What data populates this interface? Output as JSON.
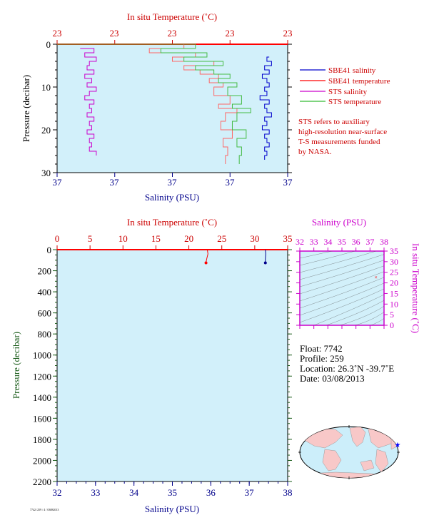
{
  "chart_data": [
    {
      "type": "line",
      "title": "",
      "top_axis": {
        "label": "In situ Temperature (˚C)",
        "tick_labels": [
          "23",
          "23",
          "23",
          "23",
          "23"
        ]
      },
      "bottom_axis": {
        "label": "Salinity (PSU)",
        "tick_labels": [
          "37",
          "37",
          "37",
          "37",
          "37"
        ]
      },
      "y_axis": {
        "label": "Pressure (decibar)",
        "ticks": [
          0,
          10,
          20,
          30
        ],
        "ylim": [
          30,
          0
        ],
        "reversed": true
      },
      "legend": {
        "placement": "right",
        "entries": [
          {
            "name": "SBE41 salinity",
            "color": "#0000cc"
          },
          {
            "name": "SBE41 temperature",
            "color": "#ff0000"
          },
          {
            "name": "STS salinity",
            "color": "#cc00cc"
          },
          {
            "name": "STS temperature",
            "color": "#33bb33"
          }
        ]
      },
      "note": [
        "STS refers to auxiliary",
        "high-resolution near-surface",
        "T-S measurements funded",
        "by NASA."
      ],
      "series": [
        {
          "name": "SBE41 salinity",
          "x_frac": [
            0.92,
            0.91,
            0.93,
            0.9,
            0.92,
            0.89,
            0.91,
            0.92,
            0.9,
            0.91,
            0.88,
            0.92,
            0.9,
            0.91,
            0.93,
            0.9,
            0.91,
            0.89,
            0.92,
            0.9,
            0.91,
            0.92,
            0.9,
            0.91,
            0.9
          ],
          "pressure": [
            3,
            4,
            5,
            6,
            7,
            8,
            9,
            10,
            11,
            12,
            13,
            14,
            15,
            16,
            17,
            18,
            19,
            20,
            21,
            22,
            23,
            24,
            25,
            26,
            27
          ]
        },
        {
          "name": "SBE41 temperature",
          "x_frac": [
            0.0,
            0.55,
            0.4,
            0.6,
            0.5,
            0.68,
            0.55,
            0.62,
            0.7,
            0.66,
            0.72,
            0.68,
            0.75,
            0.7,
            0.78,
            0.73,
            0.71,
            0.76,
            0.72,
            0.74,
            0.73
          ],
          "pressure": [
            0,
            1,
            2,
            3,
            4,
            5,
            6,
            7,
            8,
            9,
            10,
            12,
            14,
            15,
            16,
            18,
            20,
            22,
            24,
            26,
            28
          ]
        },
        {
          "name": "STS salinity",
          "x_frac": [
            0.1,
            0.16,
            0.12,
            0.17,
            0.14,
            0.13,
            0.16,
            0.12,
            0.15,
            0.13,
            0.17,
            0.14,
            0.12,
            0.16,
            0.14,
            0.15,
            0.13,
            0.16,
            0.14,
            0.15,
            0.13,
            0.16,
            0.14,
            0.15,
            0.14,
            0.17
          ],
          "pressure": [
            1,
            2,
            3,
            4,
            5,
            6,
            7,
            8,
            9,
            10,
            11,
            12,
            13,
            14,
            15,
            16,
            17,
            18,
            19,
            20,
            21,
            22,
            23,
            24,
            25,
            26
          ]
        },
        {
          "name": "STS temperature",
          "x_frac": [
            0.0,
            0.6,
            0.45,
            0.65,
            0.55,
            0.72,
            0.6,
            0.68,
            0.75,
            0.7,
            0.78,
            0.74,
            0.8,
            0.76,
            0.84,
            0.78,
            0.76,
            0.82,
            0.78,
            0.8,
            0.79
          ],
          "pressure": [
            0,
            1,
            2,
            3,
            4,
            5,
            6,
            7,
            8,
            9,
            10,
            12,
            14,
            15,
            16,
            18,
            20,
            22,
            24,
            26,
            28
          ]
        }
      ]
    },
    {
      "type": "line",
      "title": "",
      "top_axis": {
        "label": "In situ Temperature (˚C)",
        "ticks": [
          0,
          5,
          10,
          15,
          20,
          25,
          30,
          35
        ],
        "xlim": [
          0,
          35
        ]
      },
      "bottom_axis": {
        "label": "Salinity (PSU)",
        "ticks": [
          32,
          33,
          34,
          35,
          36,
          37,
          38
        ],
        "xlim": [
          32,
          38
        ]
      },
      "y_axis": {
        "label": "Pressure (decibar)",
        "ticks": [
          0,
          200,
          400,
          600,
          800,
          1000,
          1200,
          1400,
          1600,
          1800,
          2000,
          2200
        ],
        "ylim": [
          2200,
          0
        ],
        "reversed": true
      },
      "series": [
        {
          "name": "Temperature",
          "color": "#ff0000",
          "x": [
            22.8,
            22.9,
            22.7,
            22.6
          ],
          "pressure": [
            0,
            40,
            90,
            125
          ]
        },
        {
          "name": "Salinity",
          "color": "#00008b",
          "x": [
            37.42,
            37.43,
            37.42,
            37.42
          ],
          "pressure": [
            0,
            40,
            90,
            125
          ]
        }
      ]
    },
    {
      "type": "scatter",
      "title": "",
      "x_axis": {
        "label": "Salinity (PSU)",
        "ticks": [
          32,
          33,
          34,
          35,
          36,
          37,
          38
        ],
        "xlim": [
          32,
          38
        ]
      },
      "y_axis": {
        "label": "In situ Temperature (˚C)",
        "ticks": [
          0,
          5,
          10,
          15,
          20,
          25,
          30,
          35
        ],
        "ylim": [
          0,
          35
        ]
      },
      "points": [
        {
          "x": 37.42,
          "y": 22.8
        }
      ]
    }
  ],
  "info": {
    "float": "Float:  7742",
    "profile": "Profile:  259",
    "location": "Location:  26.3˚N  -39.7˚E",
    "date": "Date:  03/08/2013"
  },
  "footer": "7742 /259 / 4 / 03082013",
  "map": {
    "marker": "float-position-star"
  },
  "colors": {
    "plot_bg": "#d2f0fa",
    "red": "#cc0000",
    "blue": "#00008b",
    "magenta": "#cc00cc",
    "green": "#1a5c1a"
  }
}
